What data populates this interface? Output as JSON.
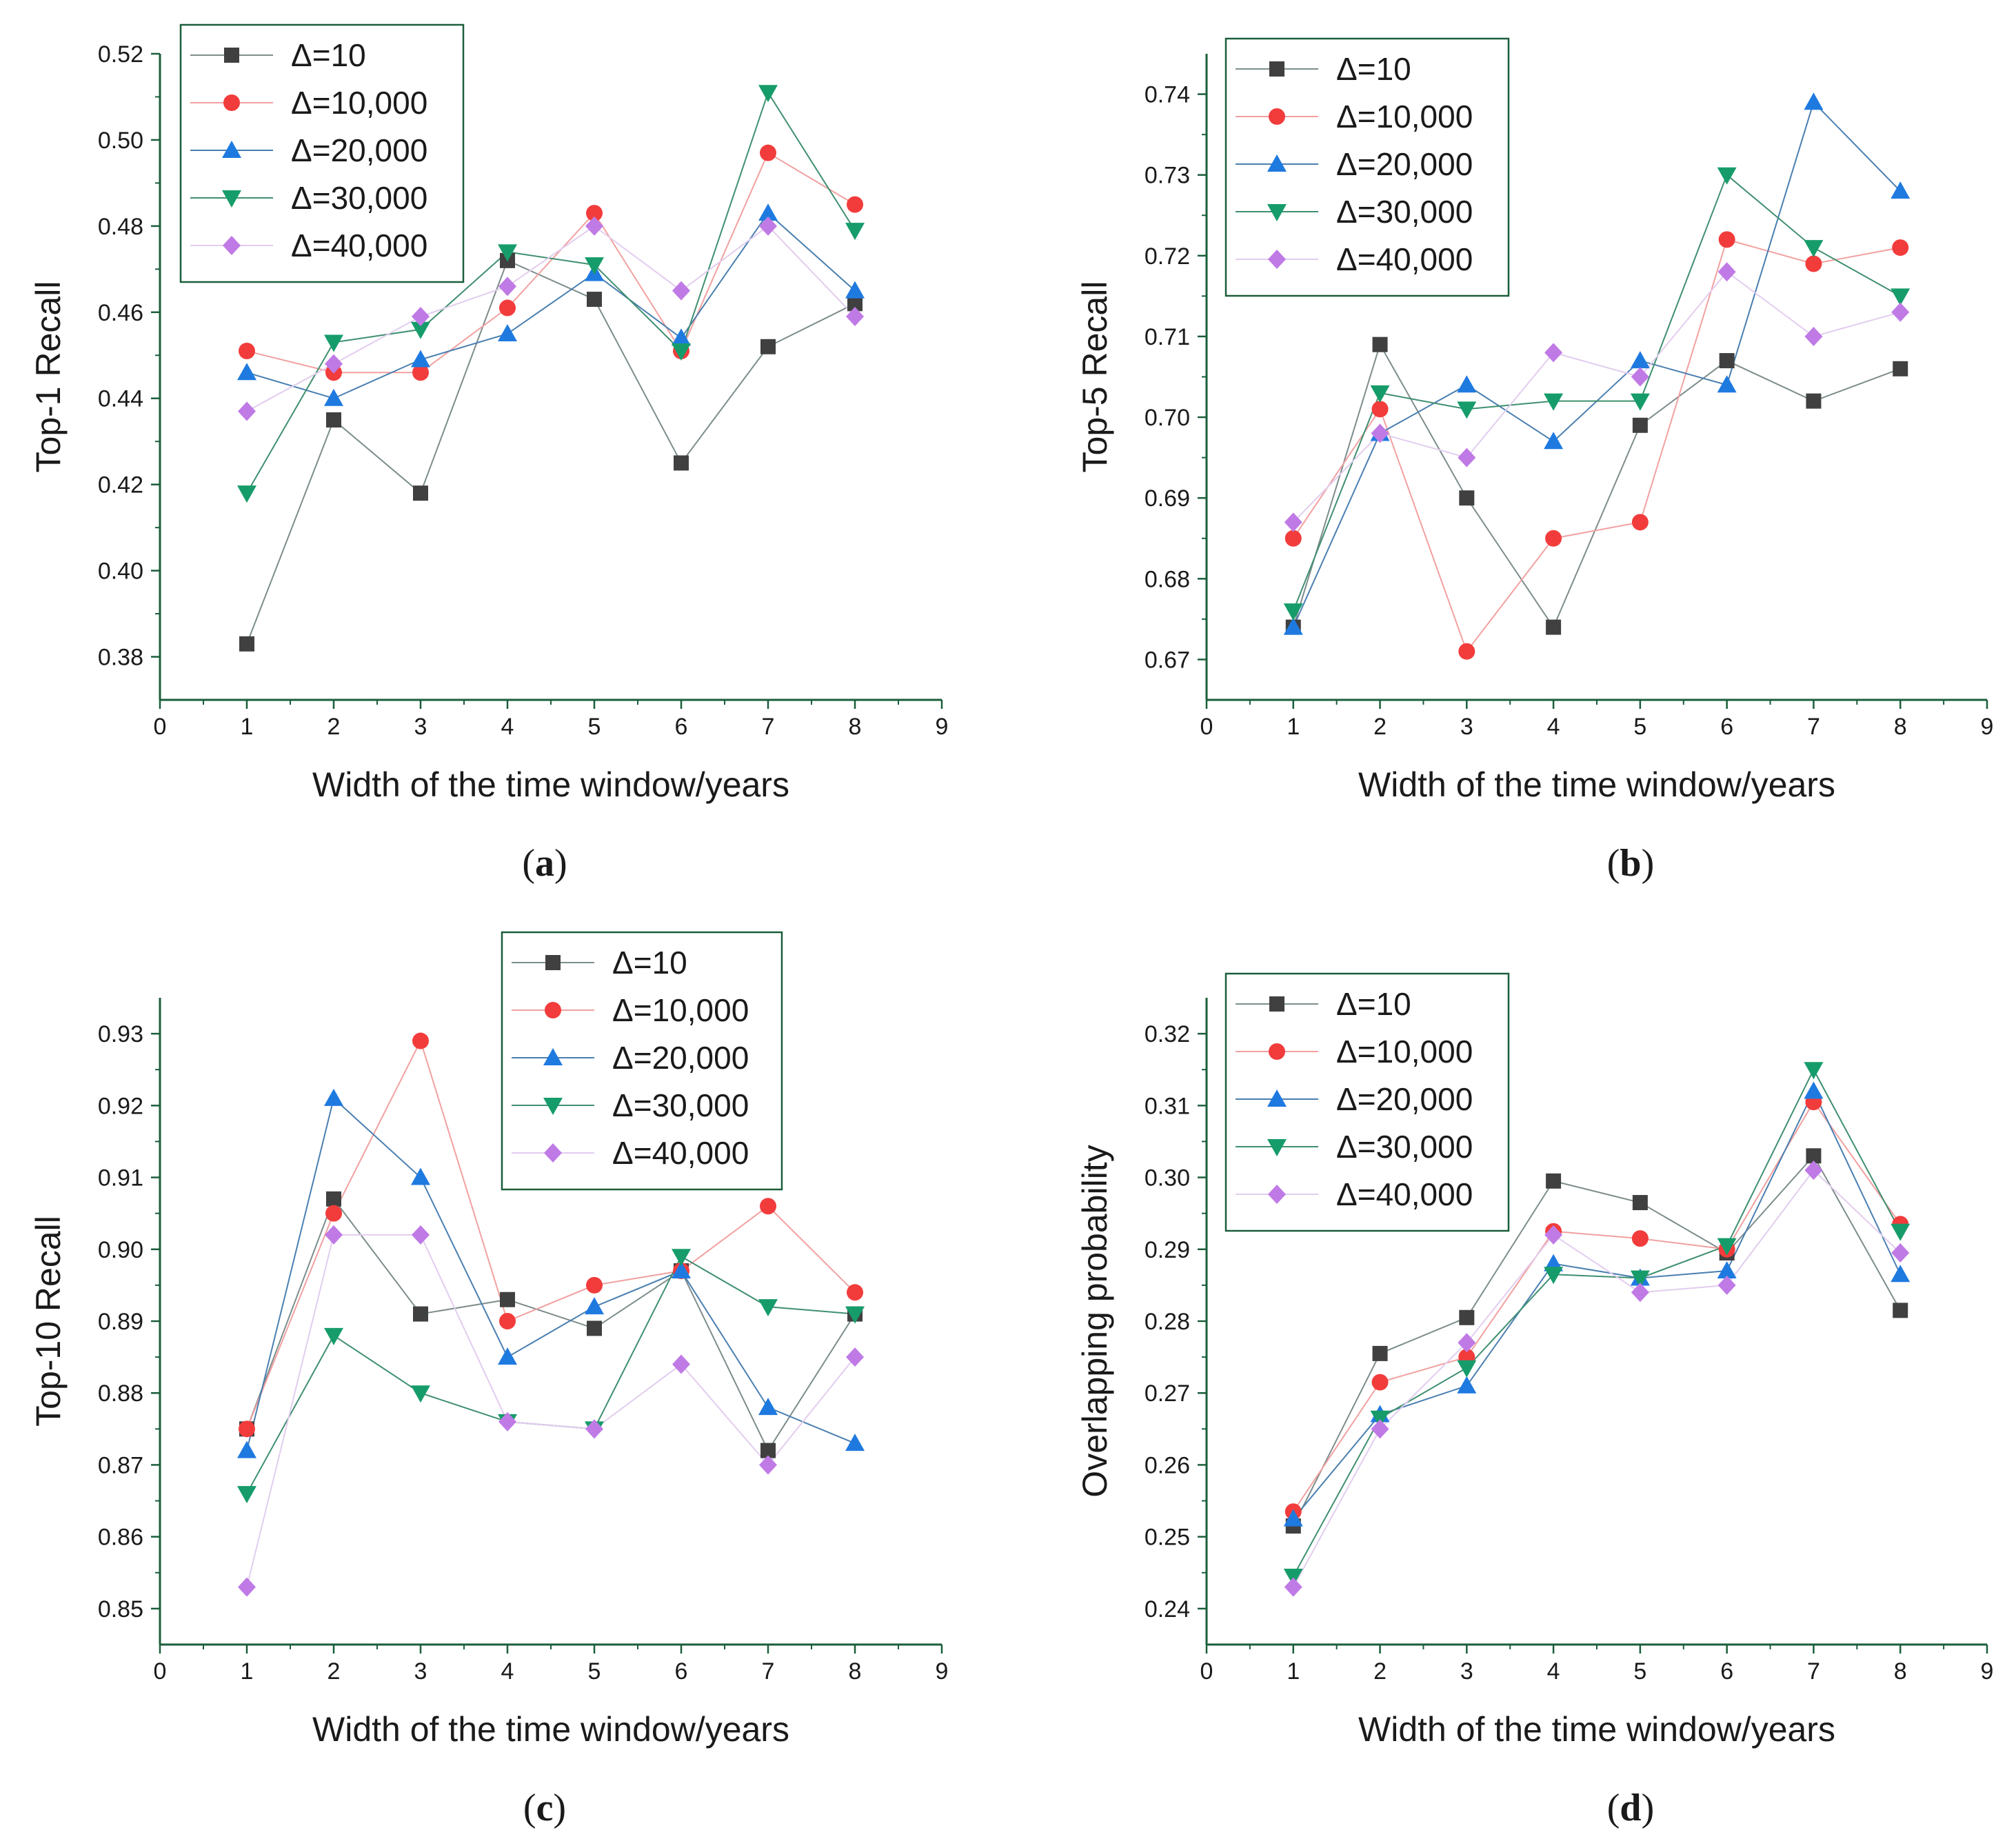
{
  "series_styles": [
    {
      "marker": "square",
      "fill": "#404040",
      "line": "#7d8c8c"
    },
    {
      "marker": "circle",
      "fill": "#f23c3c",
      "line": "#f2a0a0"
    },
    {
      "marker": "triangle-up",
      "fill": "#1f7ae0",
      "line": "#4a7fb0"
    },
    {
      "marker": "triangle-down",
      "fill": "#169c6a",
      "line": "#3f8f6f"
    },
    {
      "marker": "diamond",
      "fill": "#c07ae6",
      "line": "#e2cdef"
    }
  ],
  "axis_color": "#1a5e3a",
  "chart_data": [
    {
      "type": "line",
      "caption": "(a)",
      "caption_letter": "a",
      "xlabel": "Width of the time window/years",
      "ylabel": "Top-1 Recall",
      "xlim": [
        0,
        9
      ],
      "ylim": [
        0.37,
        0.52
      ],
      "x_ticks": [
        0,
        1,
        2,
        3,
        4,
        5,
        6,
        7,
        8,
        9
      ],
      "y_ticks": [
        "0.38",
        "0.40",
        "0.42",
        "0.44",
        "0.46",
        "0.48",
        "0.50",
        "0.52"
      ],
      "legend_position": "top-left",
      "x": [
        1,
        2,
        3,
        4,
        5,
        6,
        7,
        8
      ],
      "series": [
        {
          "name": "Δ=10",
          "values": [
            0.383,
            0.435,
            0.418,
            0.472,
            0.463,
            0.425,
            0.452,
            0.462
          ]
        },
        {
          "name": "Δ=10,000",
          "values": [
            0.451,
            0.446,
            0.446,
            0.461,
            0.483,
            0.451,
            0.497,
            0.485
          ]
        },
        {
          "name": "Δ=20,000",
          "values": [
            0.446,
            0.44,
            0.449,
            0.455,
            0.469,
            0.454,
            0.483,
            0.465
          ]
        },
        {
          "name": "Δ=30,000",
          "values": [
            0.418,
            0.453,
            0.456,
            0.474,
            0.471,
            0.451,
            0.511,
            0.479
          ]
        },
        {
          "name": "Δ=40,000",
          "values": [
            0.437,
            0.448,
            0.459,
            0.466,
            0.48,
            0.465,
            0.48,
            0.459
          ]
        }
      ]
    },
    {
      "type": "line",
      "caption": "(b)",
      "caption_letter": "b",
      "xlabel": "Width of the time window/years",
      "ylabel": "Top-5 Recall",
      "xlim": [
        0,
        9
      ],
      "ylim": [
        0.665,
        0.745
      ],
      "x_ticks": [
        0,
        1,
        2,
        3,
        4,
        5,
        6,
        7,
        8,
        9
      ],
      "y_ticks": [
        "0.67",
        "0.68",
        "0.69",
        "0.70",
        "0.71",
        "0.72",
        "0.73",
        "0.74"
      ],
      "legend_position": "top-left",
      "x": [
        1,
        2,
        3,
        4,
        5,
        6,
        7,
        8
      ],
      "series": [
        {
          "name": "Δ=10",
          "values": [
            0.674,
            0.709,
            0.69,
            0.674,
            0.699,
            0.707,
            0.702,
            0.706
          ]
        },
        {
          "name": "Δ=10,000",
          "values": [
            0.685,
            0.701,
            0.671,
            0.685,
            0.687,
            0.722,
            0.719,
            0.721
          ]
        },
        {
          "name": "Δ=20,000",
          "values": [
            0.674,
            0.698,
            0.704,
            0.697,
            0.707,
            0.704,
            0.739,
            0.728
          ]
        },
        {
          "name": "Δ=30,000",
          "values": [
            0.676,
            0.703,
            0.701,
            0.702,
            0.702,
            0.73,
            0.721,
            0.715
          ]
        },
        {
          "name": "Δ=40,000",
          "values": [
            0.687,
            0.698,
            0.695,
            0.708,
            0.705,
            0.718,
            0.71,
            0.713
          ]
        }
      ]
    },
    {
      "type": "line",
      "caption": "(c)",
      "caption_letter": "c",
      "xlabel": "Width of the time window/years",
      "ylabel": "Top-10 Recall",
      "xlim": [
        0,
        9
      ],
      "ylim": [
        0.845,
        0.935
      ],
      "x_ticks": [
        0,
        1,
        2,
        3,
        4,
        5,
        6,
        7,
        8,
        9
      ],
      "y_ticks": [
        "0.85",
        "0.86",
        "0.87",
        "0.88",
        "0.89",
        "0.90",
        "0.91",
        "0.92",
        "0.93"
      ],
      "legend_position": "top-right",
      "x": [
        1,
        2,
        3,
        4,
        5,
        6,
        7,
        8
      ],
      "series": [
        {
          "name": "Δ=10",
          "values": [
            0.875,
            0.907,
            0.891,
            0.893,
            0.889,
            0.897,
            0.872,
            0.891
          ]
        },
        {
          "name": "Δ=10,000",
          "values": [
            0.875,
            0.905,
            0.929,
            0.89,
            0.895,
            0.897,
            0.906,
            0.894
          ]
        },
        {
          "name": "Δ=20,000",
          "values": [
            0.872,
            0.921,
            0.91,
            0.885,
            0.892,
            0.897,
            0.878,
            0.873
          ]
        },
        {
          "name": "Δ=30,000",
          "values": [
            0.866,
            0.888,
            0.88,
            0.876,
            0.875,
            0.899,
            0.892,
            0.891
          ]
        },
        {
          "name": "Δ=40,000",
          "values": [
            0.853,
            0.902,
            0.902,
            0.876,
            0.875,
            0.884,
            0.87,
            0.885
          ]
        }
      ]
    },
    {
      "type": "line",
      "caption": "(d)",
      "caption_letter": "d",
      "xlabel": "Width of the time window/years",
      "ylabel": "Overlapping probability",
      "xlim": [
        0,
        9
      ],
      "ylim": [
        0.235,
        0.325
      ],
      "x_ticks": [
        0,
        1,
        2,
        3,
        4,
        5,
        6,
        7,
        8,
        9
      ],
      "y_ticks": [
        "0.24",
        "0.25",
        "0.26",
        "0.27",
        "0.28",
        "0.29",
        "0.30",
        "0.31",
        "0.32"
      ],
      "legend_position": "top-left",
      "x": [
        1,
        2,
        3,
        4,
        5,
        6,
        7,
        8
      ],
      "series": [
        {
          "name": "Δ=10",
          "values": [
            0.2515,
            0.2755,
            0.2805,
            0.2995,
            0.2965,
            0.2895,
            0.303,
            0.2815
          ]
        },
        {
          "name": "Δ=10,000",
          "values": [
            0.2535,
            0.2715,
            0.275,
            0.2925,
            0.2915,
            0.29,
            0.3105,
            0.2935
          ]
        },
        {
          "name": "Δ=20,000",
          "values": [
            0.2525,
            0.267,
            0.271,
            0.288,
            0.286,
            0.287,
            0.312,
            0.2865
          ]
        },
        {
          "name": "Δ=30,000",
          "values": [
            0.2445,
            0.2665,
            0.2735,
            0.2865,
            0.286,
            0.2905,
            0.315,
            0.2925
          ]
        },
        {
          "name": "Δ=40,000",
          "values": [
            0.243,
            0.265,
            0.277,
            0.292,
            0.284,
            0.285,
            0.301,
            0.2895
          ]
        }
      ]
    }
  ]
}
